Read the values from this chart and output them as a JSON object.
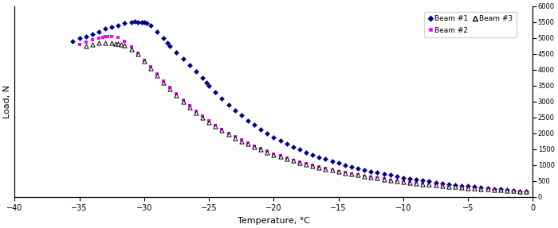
{
  "xlabel": "Temperature, °C",
  "ylabel": "Load, N",
  "xlim": [
    -40,
    0
  ],
  "ylim": [
    0,
    6000
  ],
  "xticks": [
    -40,
    -35,
    -30,
    -25,
    -20,
    -15,
    -10,
    -5,
    0
  ],
  "yticks_right": [
    0,
    500,
    1000,
    1500,
    2000,
    2500,
    3000,
    3500,
    4000,
    4500,
    5000,
    5500,
    6000
  ],
  "beam1_color": "#00008B",
  "beam2_color": "#FF00FF",
  "beam3_color": "#000000",
  "legend_labels": [
    "Beam #1",
    "Beam #2",
    "Beam #3"
  ],
  "beam1_x": [
    -35.5,
    -35.0,
    -34.5,
    -34.0,
    -33.5,
    -33.0,
    -32.5,
    -32.0,
    -31.5,
    -31.0,
    -30.7,
    -30.5,
    -30.2,
    -30.0,
    -29.8,
    -29.5,
    -29.0,
    -28.5,
    -28.2,
    -28.0,
    -27.5,
    -27.0,
    -26.5,
    -26.0,
    -25.5,
    -25.2,
    -25.0,
    -24.5,
    -24.0,
    -23.5,
    -23.0,
    -22.5,
    -22.0,
    -21.5,
    -21.0,
    -20.5,
    -20.0,
    -19.5,
    -19.0,
    -18.5,
    -18.0,
    -17.5,
    -17.0,
    -16.5,
    -16.0,
    -15.5,
    -15.0,
    -14.5,
    -14.0,
    -13.5,
    -13.0,
    -12.5,
    -12.0,
    -11.5,
    -11.0,
    -10.5,
    -10.0,
    -9.5,
    -9.0,
    -8.5,
    -8.0,
    -7.5,
    -7.0,
    -6.5,
    -6.0,
    -5.5,
    -5.0,
    -4.5,
    -4.0,
    -3.5,
    -3.0,
    -2.5,
    -2.0,
    -1.5,
    -1.0,
    -0.5
  ],
  "beam1_y": [
    4900,
    4980,
    5050,
    5120,
    5200,
    5280,
    5350,
    5400,
    5460,
    5500,
    5510,
    5500,
    5490,
    5480,
    5460,
    5400,
    5200,
    4980,
    4850,
    4750,
    4550,
    4350,
    4150,
    3950,
    3750,
    3600,
    3480,
    3280,
    3080,
    2900,
    2720,
    2560,
    2400,
    2260,
    2120,
    1990,
    1870,
    1760,
    1660,
    1570,
    1480,
    1400,
    1320,
    1250,
    1180,
    1120,
    1060,
    1000,
    950,
    900,
    850,
    800,
    760,
    720,
    680,
    640,
    600,
    570,
    540,
    510,
    480,
    450,
    420,
    400,
    375,
    350,
    330,
    310,
    290,
    270,
    250,
    230,
    210,
    190,
    175,
    160
  ],
  "beam2_x": [
    -35.0,
    -34.5,
    -34.0,
    -33.5,
    -33.2,
    -33.0,
    -32.8,
    -32.5,
    -32.0,
    -31.5,
    -31.0,
    -30.5,
    -30.0,
    -29.5,
    -29.0,
    -28.5,
    -28.0,
    -27.5,
    -27.0,
    -26.5,
    -26.0,
    -25.5,
    -25.0,
    -24.5,
    -24.0,
    -23.5,
    -23.0,
    -22.5,
    -22.0,
    -21.5,
    -21.0,
    -20.5,
    -20.0,
    -19.5,
    -19.0,
    -18.5,
    -18.0,
    -17.5,
    -17.0,
    -16.5,
    -16.0,
    -15.5,
    -15.0,
    -14.5,
    -14.0,
    -13.5,
    -13.0,
    -12.5,
    -12.0,
    -11.5,
    -11.0,
    -10.5,
    -10.0,
    -9.5,
    -9.0,
    -8.5,
    -8.0,
    -7.5,
    -7.0,
    -6.5,
    -6.0,
    -5.5,
    -5.0,
    -4.5,
    -4.0,
    -3.5,
    -3.0,
    -2.5,
    -2.0,
    -1.5,
    -1.0,
    -0.5
  ],
  "beam2_y": [
    4800,
    4870,
    4930,
    4980,
    5010,
    5030,
    5040,
    5040,
    5010,
    4900,
    4720,
    4520,
    4300,
    4080,
    3860,
    3640,
    3430,
    3230,
    3040,
    2860,
    2690,
    2530,
    2380,
    2240,
    2110,
    1990,
    1880,
    1780,
    1690,
    1600,
    1510,
    1430,
    1350,
    1280,
    1210,
    1150,
    1090,
    1030,
    980,
    930,
    880,
    840,
    800,
    760,
    720,
    685,
    650,
    620,
    585,
    555,
    525,
    495,
    470,
    445,
    420,
    395,
    375,
    355,
    335,
    315,
    298,
    280,
    263,
    248,
    233,
    218,
    205,
    192,
    180,
    168,
    157,
    147
  ],
  "beam3_x": [
    -34.5,
    -34.0,
    -33.5,
    -33.0,
    -32.5,
    -32.2,
    -32.0,
    -31.8,
    -31.5,
    -31.0,
    -30.5,
    -30.0,
    -29.5,
    -29.0,
    -28.5,
    -28.0,
    -27.5,
    -27.0,
    -26.5,
    -26.0,
    -25.5,
    -25.0,
    -24.5,
    -24.0,
    -23.5,
    -23.0,
    -22.5,
    -22.0,
    -21.5,
    -21.0,
    -20.5,
    -20.0,
    -19.5,
    -19.0,
    -18.5,
    -18.0,
    -17.5,
    -17.0,
    -16.5,
    -16.0,
    -15.5,
    -15.0,
    -14.5,
    -14.0,
    -13.5,
    -13.0,
    -12.5,
    -12.0,
    -11.5,
    -11.0,
    -10.5,
    -10.0,
    -9.5,
    -9.0,
    -8.5,
    -8.0,
    -7.5,
    -7.0,
    -6.5,
    -6.0,
    -5.5,
    -5.0,
    -4.5,
    -4.0,
    -3.5,
    -3.0,
    -2.5,
    -2.0,
    -1.5,
    -1.0,
    -0.5
  ],
  "beam3_y": [
    4750,
    4800,
    4830,
    4840,
    4830,
    4820,
    4810,
    4800,
    4760,
    4650,
    4480,
    4260,
    4040,
    3820,
    3600,
    3390,
    3190,
    3000,
    2820,
    2650,
    2490,
    2350,
    2210,
    2080,
    1960,
    1850,
    1750,
    1655,
    1565,
    1480,
    1400,
    1325,
    1255,
    1190,
    1130,
    1070,
    1015,
    965,
    915,
    870,
    830,
    790,
    750,
    715,
    678,
    643,
    610,
    578,
    548,
    519,
    491,
    466,
    443,
    420,
    398,
    377,
    357,
    338,
    320,
    302,
    286,
    270,
    256,
    242,
    228,
    215,
    203,
    191,
    180,
    170,
    160
  ]
}
